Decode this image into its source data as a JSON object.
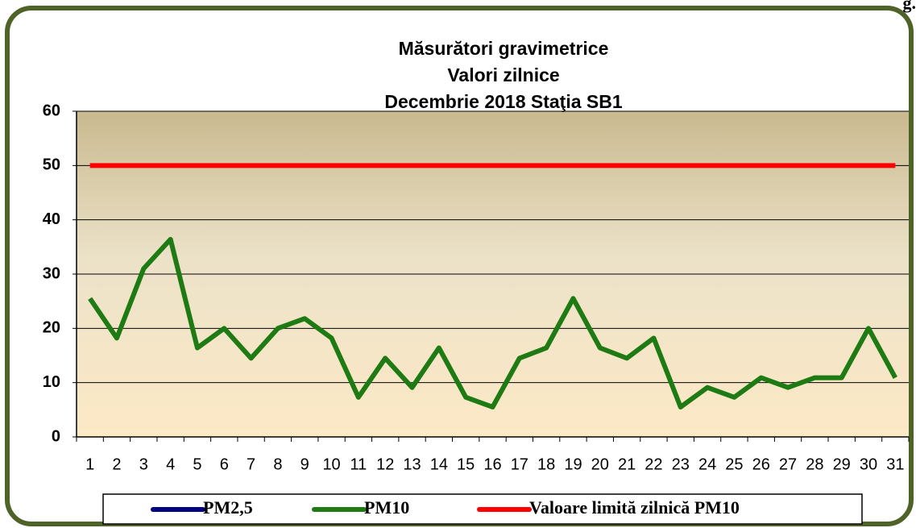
{
  "chart_data": {
    "type": "line",
    "title": "Măsurători gravimetrice",
    "subtitle": "Valori zilnice",
    "subtitle2": "Decembrie 2018 Staţia SB1",
    "corner_text": "g.",
    "categories": [
      "1",
      "2",
      "3",
      "4",
      "5",
      "6",
      "7",
      "8",
      "9",
      "10",
      "11",
      "12",
      "13",
      "14",
      "15",
      "16",
      "17",
      "18",
      "19",
      "20",
      "21",
      "22",
      "23",
      "24",
      "25",
      "26",
      "27",
      "28",
      "29",
      "30",
      "31"
    ],
    "series": [
      {
        "name": "PM2,5",
        "color": "#000080",
        "values": [
          null,
          null,
          null,
          null,
          null,
          null,
          null,
          null,
          null,
          null,
          null,
          null,
          null,
          null,
          null,
          null,
          null,
          null,
          null,
          null,
          null,
          null,
          null,
          null,
          null,
          null,
          null,
          null,
          null,
          null,
          null
        ]
      },
      {
        "name": "PM10",
        "color": "#1e7a12",
        "values": [
          25.5,
          18.2,
          31,
          36.4,
          16.4,
          20,
          14.5,
          20,
          21.8,
          18.2,
          7.3,
          14.5,
          9.1,
          16.4,
          7.3,
          5.5,
          14.5,
          16.4,
          25.5,
          16.4,
          14.5,
          18.2,
          5.5,
          9.1,
          7.3,
          10.9,
          9.1,
          10.9,
          10.9,
          20,
          10.9
        ]
      },
      {
        "name": "Valoare limită zilnică PM10",
        "color": "#ff0000",
        "values": [
          50,
          50,
          50,
          50,
          50,
          50,
          50,
          50,
          50,
          50,
          50,
          50,
          50,
          50,
          50,
          50,
          50,
          50,
          50,
          50,
          50,
          50,
          50,
          50,
          50,
          50,
          50,
          50,
          50,
          50,
          50
        ]
      }
    ],
    "ylim": [
      0,
      60
    ],
    "yticks": [
      0,
      10,
      20,
      30,
      40,
      50,
      60
    ],
    "grid": true
  }
}
